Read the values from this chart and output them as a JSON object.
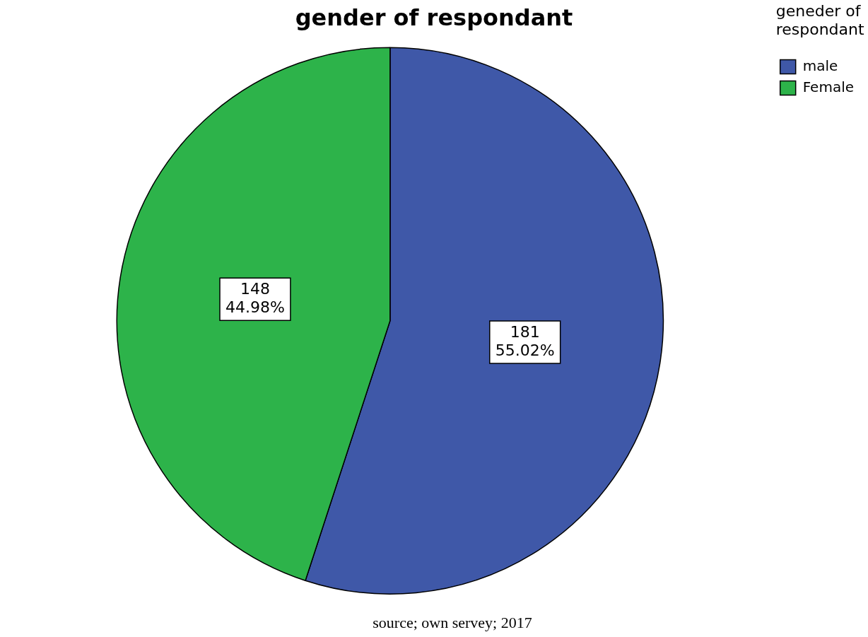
{
  "chart_data": {
    "type": "pie",
    "title": "gender of respondant",
    "legend_title": "geneder of respondant",
    "categories": [
      "male",
      "Female"
    ],
    "values": [
      181,
      148
    ],
    "colors": [
      "#3f58a8",
      "#2db34a"
    ],
    "value_labels": [
      "181\n55.02%",
      "148\n44.98%"
    ],
    "legend": "top right",
    "annotations": [
      "source; own servey; 2017"
    ]
  }
}
